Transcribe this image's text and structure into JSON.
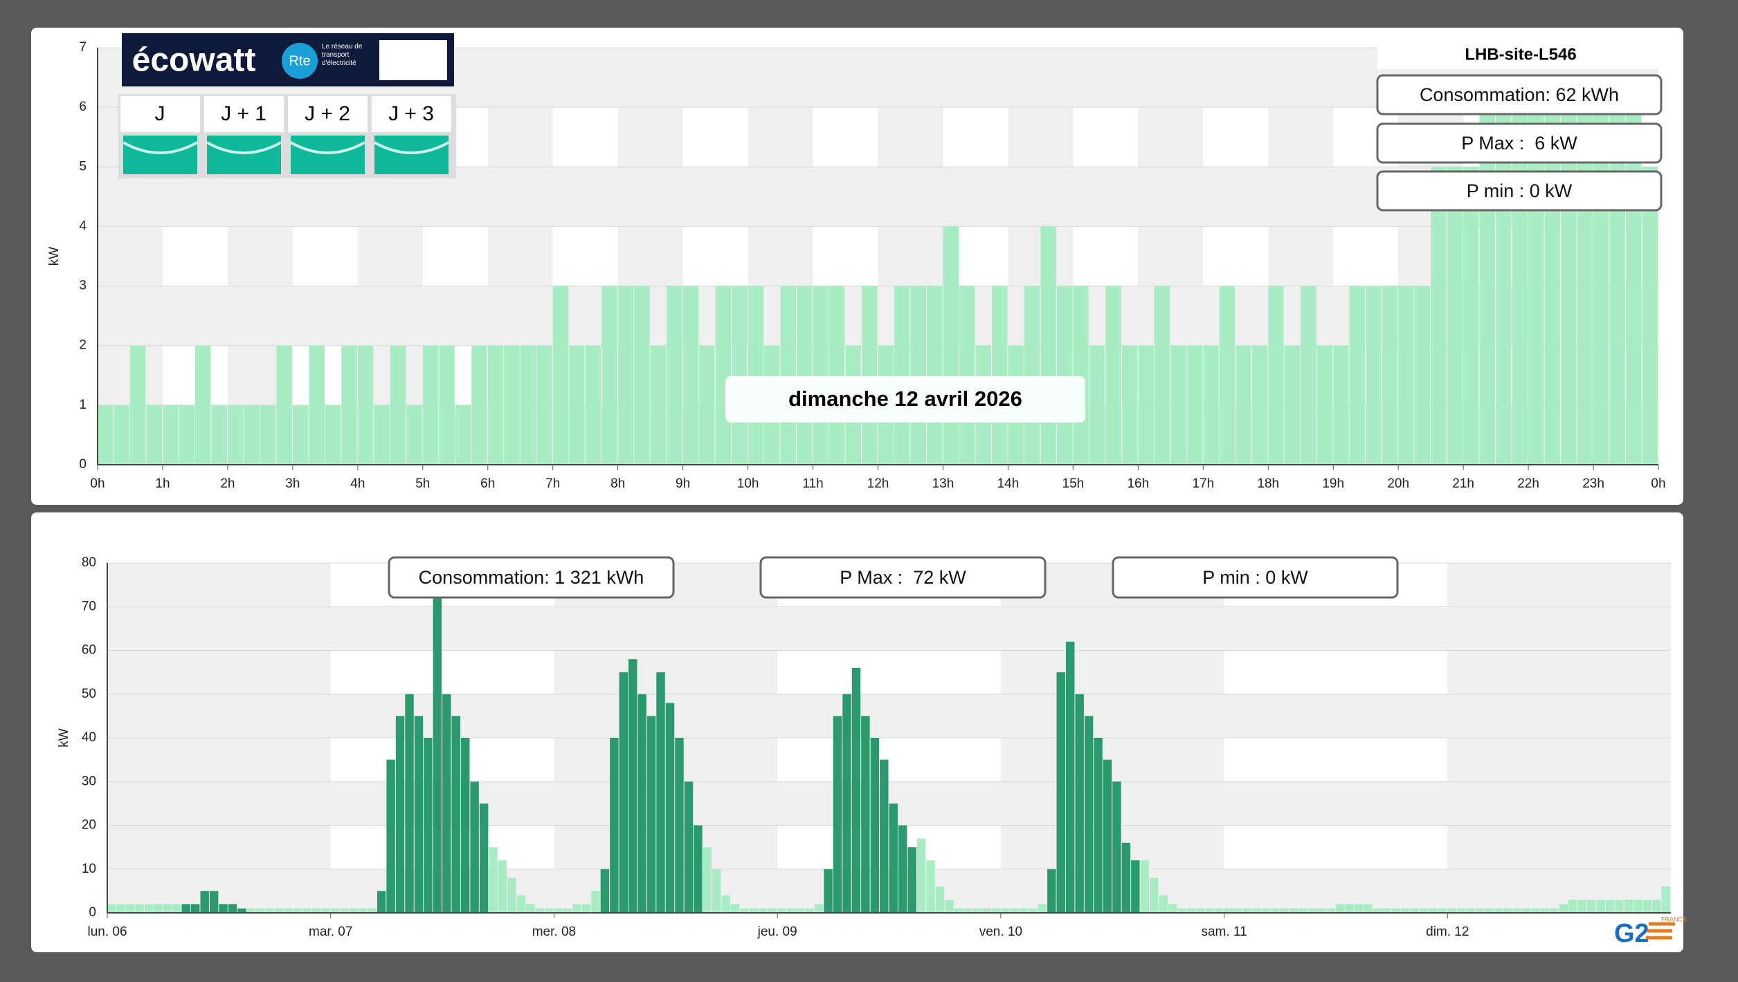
{
  "logos": {
    "ecowatt": "écowatt",
    "rte": "Rte",
    "rte_tagline": "Le réseau de transport d'électricité",
    "g2e": "G2",
    "g2e_country": "FRANCE"
  },
  "ecowatt_days": [
    "J",
    "J + 1",
    "J + 2",
    "J + 3"
  ],
  "chart_data": [
    {
      "type": "bar",
      "site": "LHB-site-L546",
      "date_label": "dimanche 12 avril 2026",
      "y_label": "kW",
      "stats": [
        "Consommation: 62 kWh",
        "P Max :  6 kW",
        "P min : 0 kW"
      ],
      "color": "#a8ecc4",
      "grid": true,
      "xlim": [
        0,
        24
      ],
      "xticks": [
        {
          "value": 0,
          "label": "0h"
        },
        {
          "value": 1,
          "label": "1h"
        },
        {
          "value": 2,
          "label": "2h"
        },
        {
          "value": 3,
          "label": "3h"
        },
        {
          "value": 4,
          "label": "4h"
        },
        {
          "value": 5,
          "label": "5h"
        },
        {
          "value": 6,
          "label": "6h"
        },
        {
          "value": 7,
          "label": "7h"
        },
        {
          "value": 8,
          "label": "8h"
        },
        {
          "value": 9,
          "label": "9h"
        },
        {
          "value": 10,
          "label": "10h"
        },
        {
          "value": 11,
          "label": "11h"
        },
        {
          "value": 12,
          "label": "12h"
        },
        {
          "value": 13,
          "label": "13h"
        },
        {
          "value": 14,
          "label": "14h"
        },
        {
          "value": 15,
          "label": "15h"
        },
        {
          "value": 16,
          "label": "16h"
        },
        {
          "value": 17,
          "label": "17h"
        },
        {
          "value": 18,
          "label": "18h"
        },
        {
          "value": 19,
          "label": "19h"
        },
        {
          "value": 20,
          "label": "20h"
        },
        {
          "value": 21,
          "label": "21h"
        },
        {
          "value": 22,
          "label": "22h"
        },
        {
          "value": 23,
          "label": "23h"
        },
        {
          "value": 24,
          "label": "0h"
        }
      ],
      "ylim": [
        0,
        7
      ],
      "yticks": [
        0,
        1,
        2,
        3,
        4,
        5,
        6,
        7
      ],
      "values": [
        1,
        1,
        2,
        1,
        1,
        1,
        2,
        1,
        1,
        1,
        1,
        2,
        1,
        2,
        1,
        2,
        2,
        1,
        2,
        1,
        2,
        2,
        1,
        2,
        2,
        2,
        2,
        2,
        3,
        2,
        2,
        3,
        3,
        3,
        2,
        3,
        3,
        2,
        3,
        3,
        3,
        2,
        3,
        3,
        3,
        3,
        2,
        3,
        2,
        3,
        3,
        3,
        4,
        3,
        2,
        3,
        2,
        3,
        4,
        3,
        3,
        2,
        3,
        2,
        2,
        3,
        2,
        2,
        2,
        3,
        2,
        2,
        3,
        2,
        3,
        2,
        2,
        3,
        3,
        3,
        3,
        3,
        5,
        5,
        5,
        6,
        6,
        6,
        6,
        6,
        6,
        6,
        6,
        6,
        6,
        5
      ]
    },
    {
      "type": "bar",
      "y_label": "kW",
      "stats": [
        "Consommation: 1 321 kWh",
        "P Max :  72 kW",
        "P min : 0 kW"
      ],
      "grid": true,
      "xlim": [
        0,
        168
      ],
      "xticks": [
        {
          "value": 0,
          "label": "lun. 06"
        },
        {
          "value": 24,
          "label": "mar. 07"
        },
        {
          "value": 48,
          "label": "mer. 08"
        },
        {
          "value": 72,
          "label": "jeu. 09"
        },
        {
          "value": 96,
          "label": "ven. 10"
        },
        {
          "value": 120,
          "label": "sam. 11"
        },
        {
          "value": 144,
          "label": "dim. 12"
        }
      ],
      "ylim": [
        0,
        80
      ],
      "yticks": [
        0,
        10,
        20,
        30,
        40,
        50,
        60,
        70,
        80
      ],
      "series": [
        {
          "color": "#2a9a6e",
          "values": [
            null,
            null,
            null,
            null,
            null,
            null,
            null,
            null,
            2,
            2,
            5,
            5,
            2,
            2,
            1,
            null,
            null,
            null,
            null,
            null,
            null,
            null,
            null,
            null,
            null,
            null,
            null,
            null,
            null,
            5,
            35,
            45,
            50,
            45,
            40,
            72,
            50,
            45,
            40,
            30,
            25,
            null,
            null,
            null,
            null,
            null,
            null,
            null,
            null,
            null,
            null,
            null,
            null,
            10,
            40,
            55,
            58,
            50,
            45,
            55,
            48,
            40,
            30,
            20,
            null,
            null,
            null,
            null,
            null,
            null,
            null,
            null,
            null,
            null,
            null,
            null,
            null,
            10,
            45,
            50,
            56,
            45,
            40,
            35,
            25,
            20,
            15,
            null,
            null,
            null,
            null,
            null,
            null,
            null,
            null,
            null,
            null,
            null,
            null,
            null,
            null,
            10,
            55,
            62,
            50,
            45,
            40,
            35,
            30,
            16,
            12,
            null,
            null,
            null,
            null,
            null,
            null,
            null,
            null,
            null,
            null,
            null,
            null,
            null,
            null,
            null,
            null,
            null,
            null,
            null,
            null,
            null,
            null,
            null,
            null,
            null,
            null,
            null,
            null,
            null,
            null,
            null,
            null,
            null,
            null,
            null,
            null,
            null,
            null,
            null,
            null,
            null,
            null,
            null,
            null,
            null,
            null,
            null,
            null,
            null,
            null,
            null,
            null,
            null,
            null,
            null,
            null,
            null
          ]
        },
        {
          "color": "#a8ecc4",
          "values": [
            2,
            2,
            2,
            2,
            2,
            2,
            2,
            2,
            null,
            null,
            null,
            null,
            null,
            null,
            null,
            1,
            1,
            1,
            1,
            1,
            1,
            1,
            1,
            1,
            1,
            1,
            1,
            1,
            1,
            null,
            null,
            null,
            null,
            null,
            null,
            null,
            null,
            null,
            null,
            null,
            null,
            15,
            12,
            8,
            4,
            2,
            1,
            1,
            1,
            1,
            2,
            2,
            5,
            null,
            null,
            null,
            null,
            null,
            null,
            null,
            null,
            null,
            null,
            null,
            15,
            10,
            4,
            2,
            1,
            1,
            1,
            1,
            1,
            1,
            1,
            1,
            2,
            null,
            null,
            null,
            null,
            null,
            null,
            null,
            null,
            null,
            null,
            17,
            12,
            6,
            3,
            1,
            1,
            1,
            1,
            1,
            1,
            1,
            1,
            1,
            2,
            null,
            null,
            null,
            null,
            null,
            null,
            null,
            null,
            null,
            null,
            12,
            8,
            4,
            2,
            1,
            1,
            1,
            1,
            1,
            1,
            1,
            1,
            1,
            1,
            1,
            1,
            1,
            1,
            1,
            1,
            1,
            2,
            2,
            2,
            2,
            1,
            1,
            1,
            1,
            1,
            1,
            1,
            1,
            1,
            1,
            1,
            1,
            1,
            1,
            1,
            1,
            1,
            1,
            1,
            1,
            2,
            3,
            3,
            3,
            3,
            3,
            3,
            3,
            3,
            3,
            3,
            6
          ]
        }
      ]
    }
  ]
}
